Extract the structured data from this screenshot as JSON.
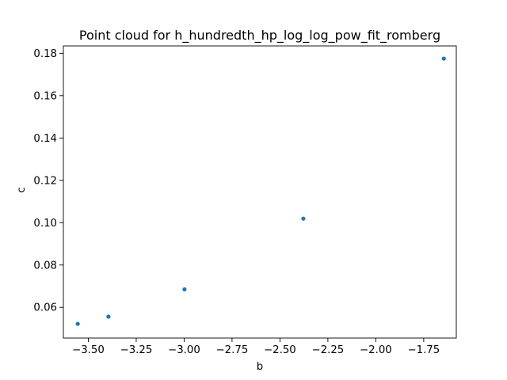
{
  "chart_data": {
    "type": "scatter",
    "title": "Point cloud for h_hundredth_hp_log_log_pow_fit_romberg",
    "xlabel": "b",
    "ylabel": "c",
    "xlim": [
      -3.63,
      -1.58
    ],
    "ylim": [
      0.0455,
      0.1835
    ],
    "xticks": [
      -3.5,
      -3.25,
      -3.0,
      -2.75,
      -2.5,
      -2.25,
      -2.0,
      -1.75
    ],
    "xtick_labels": [
      "−3.50",
      "−3.25",
      "−3.00",
      "−2.75",
      "−2.50",
      "−2.25",
      "−2.00",
      "−1.75"
    ],
    "yticks": [
      0.06,
      0.08,
      0.1,
      0.12,
      0.14,
      0.16,
      0.18
    ],
    "ytick_labels": [
      "0.06",
      "0.08",
      "0.10",
      "0.12",
      "0.14",
      "0.16",
      "0.18"
    ],
    "grid": false,
    "series": [
      {
        "color": "#1f77b4",
        "points": [
          {
            "x": -3.555,
            "y": 0.0522
          },
          {
            "x": -3.395,
            "y": 0.0556
          },
          {
            "x": -2.998,
            "y": 0.0685
          },
          {
            "x": -2.378,
            "y": 0.1019
          },
          {
            "x": -1.645,
            "y": 0.1775
          }
        ]
      }
    ]
  }
}
